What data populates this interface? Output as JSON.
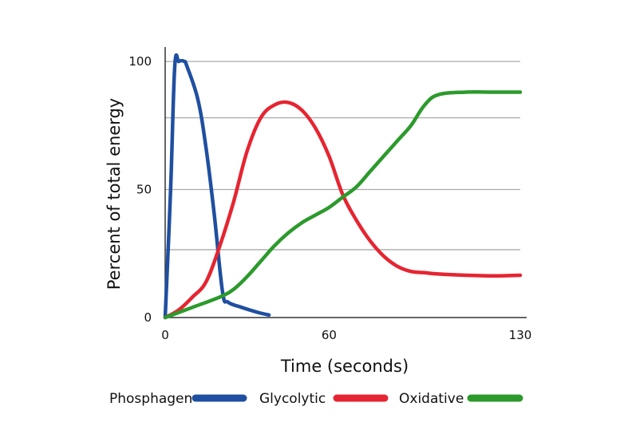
{
  "chart_data": {
    "type": "line",
    "title": "",
    "xlabel": "Time (seconds)",
    "ylabel": "Percent of total energy",
    "xlim": [
      0,
      130
    ],
    "ylim": [
      0,
      100
    ],
    "x_ticks": [
      0,
      60,
      130
    ],
    "y_ticks": [
      0,
      50,
      100
    ],
    "x_tick_labels": [
      "0",
      "60",
      "130"
    ],
    "y_tick_labels": [
      "0",
      "50",
      "100"
    ],
    "gridlines_y": [
      0,
      26.5,
      50,
      78,
      100
    ],
    "grid": true,
    "legend_position": "bottom",
    "series": [
      {
        "name": "Phosphagen",
        "color": "#1f4fa0",
        "points": [
          [
            0,
            0
          ],
          [
            2,
            50
          ],
          [
            3.5,
            98
          ],
          [
            5,
            100
          ],
          [
            7,
            100
          ],
          [
            8,
            98
          ],
          [
            12,
            85
          ],
          [
            15,
            66
          ],
          [
            18,
            40
          ],
          [
            21,
            10
          ],
          [
            23,
            6
          ],
          [
            28,
            4
          ],
          [
            34,
            2
          ],
          [
            38,
            1
          ]
        ]
      },
      {
        "name": "Glycolytic",
        "color": "#e52531",
        "points": [
          [
            0,
            0
          ],
          [
            5,
            3
          ],
          [
            10,
            8
          ],
          [
            15,
            14
          ],
          [
            20,
            28
          ],
          [
            25,
            45
          ],
          [
            30,
            65
          ],
          [
            35,
            78
          ],
          [
            40,
            83
          ],
          [
            45,
            84
          ],
          [
            50,
            81
          ],
          [
            55,
            74
          ],
          [
            60,
            63
          ],
          [
            65,
            48
          ],
          [
            70,
            38
          ],
          [
            75,
            30
          ],
          [
            80,
            24
          ],
          [
            85,
            20
          ],
          [
            90,
            18
          ],
          [
            95,
            17.5
          ],
          [
            100,
            17
          ],
          [
            110,
            16.5
          ],
          [
            120,
            16.3
          ],
          [
            130,
            16.5
          ]
        ]
      },
      {
        "name": "Oxidative",
        "color": "#2c9a2c",
        "points": [
          [
            0,
            0
          ],
          [
            10,
            4
          ],
          [
            20,
            8
          ],
          [
            25,
            11
          ],
          [
            30,
            16
          ],
          [
            35,
            22
          ],
          [
            40,
            28
          ],
          [
            45,
            33
          ],
          [
            50,
            37
          ],
          [
            55,
            40
          ],
          [
            60,
            43
          ],
          [
            65,
            47
          ],
          [
            70,
            51
          ],
          [
            75,
            57
          ],
          [
            80,
            63
          ],
          [
            85,
            69
          ],
          [
            90,
            75
          ],
          [
            95,
            83
          ],
          [
            100,
            87
          ],
          [
            110,
            88
          ],
          [
            120,
            88
          ],
          [
            130,
            88
          ]
        ]
      }
    ]
  }
}
